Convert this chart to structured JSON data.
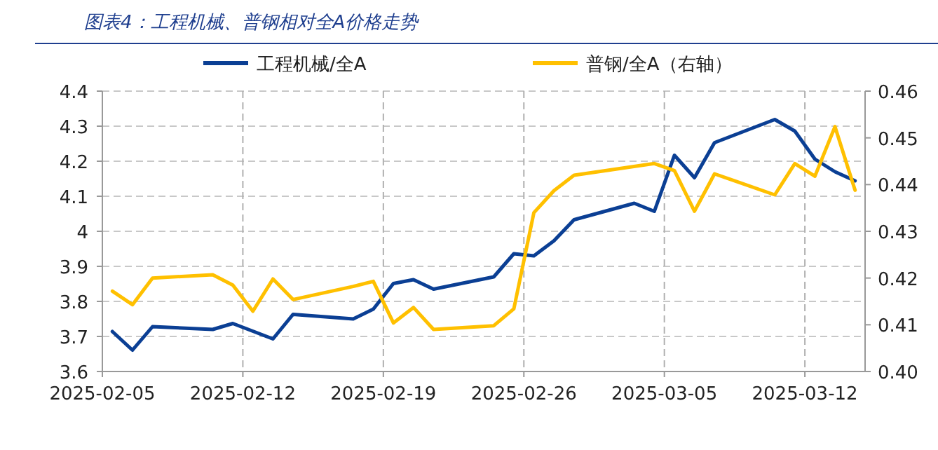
{
  "chart_data": {
    "type": "line",
    "title": "图表4：工程机械、普钢相对全A价格走势",
    "series": [
      {
        "name": "工程机械/全A",
        "color": "#0b3f94",
        "x": [
          "2025-02-05T12:00",
          "2025-02-06T12:00",
          "2025-02-07T12:00",
          "2025-02-10T12:00",
          "2025-02-11T12:00",
          "2025-02-13T12:00",
          "2025-02-14T12:00",
          "2025-02-17T12:00",
          "2025-02-18T12:00",
          "2025-02-19T12:00",
          "2025-02-20T12:00",
          "2025-02-21T12:00",
          "2025-02-24T12:00",
          "2025-02-25T12:00",
          "2025-02-26T12:00",
          "2025-02-27T12:00",
          "2025-02-28T12:00",
          "2025-03-03T12:00",
          "2025-03-04T12:00",
          "2025-03-05T12:00",
          "2025-03-06T12:00",
          "2025-03-07T12:00",
          "2025-03-10T12:00",
          "2025-03-11T12:00",
          "2025-03-12T12:00",
          "2025-03-13T12:00",
          "2025-03-14T12:00"
        ],
        "values": [
          3.714,
          3.661,
          3.728,
          3.72,
          3.737,
          3.693,
          3.763,
          3.75,
          3.778,
          3.851,
          3.862,
          3.835,
          3.87,
          3.936,
          3.93,
          3.973,
          4.033,
          4.08,
          4.057,
          4.217,
          4.153,
          4.253,
          4.319,
          4.286,
          4.206,
          4.17,
          4.144
        ]
      },
      {
        "name": "普钢/全A（右轴）",
        "color": "#ffc000",
        "axis": "y2",
        "x": [
          "2025-02-05T12:00",
          "2025-02-06T12:00",
          "2025-02-07T12:00",
          "2025-02-10T12:00",
          "2025-02-11T12:00",
          "2025-02-12T12:00",
          "2025-02-13T12:00",
          "2025-02-14T12:00",
          "2025-02-17T12:00",
          "2025-02-18T12:00",
          "2025-02-19T12:00",
          "2025-02-20T12:00",
          "2025-02-21T12:00",
          "2025-02-24T12:00",
          "2025-02-25T12:00",
          "2025-02-26T12:00",
          "2025-02-27T12:00",
          "2025-02-28T12:00",
          "2025-03-04T12:00",
          "2025-03-05T12:00",
          "2025-03-06T12:00",
          "2025-03-07T12:00",
          "2025-03-10T12:00",
          "2025-03-11T12:00",
          "2025-03-12T12:00",
          "2025-03-13T12:00",
          "2025-03-14T12:00"
        ],
        "values": [
          0.4172,
          0.4143,
          0.42,
          0.4207,
          0.4185,
          0.4129,
          0.4198,
          0.4154,
          0.4182,
          0.4193,
          0.4104,
          0.4137,
          0.409,
          0.4098,
          0.4134,
          0.434,
          0.4387,
          0.442,
          0.4445,
          0.443,
          0.4343,
          0.4423,
          0.4378,
          0.4445,
          0.4418,
          0.4524,
          0.4388
        ]
      }
    ],
    "xlim": [
      "2025-02-05",
      "2025-03-15"
    ],
    "xticks": [
      {
        "value": "2025-02-05",
        "label": "2025-02-05"
      },
      {
        "value": "2025-02-12",
        "label": "2025-02-12"
      },
      {
        "value": "2025-02-19",
        "label": "2025-02-19"
      },
      {
        "value": "2025-02-26",
        "label": "2025-02-26"
      },
      {
        "value": "2025-03-05",
        "label": "2025-03-05"
      },
      {
        "value": "2025-03-12",
        "label": "2025-03-12"
      }
    ],
    "ylim": [
      3.6,
      4.4
    ],
    "yticks": [
      {
        "value": 3.6,
        "label": "3.6"
      },
      {
        "value": 3.7,
        "label": "3.7"
      },
      {
        "value": 3.8,
        "label": "3.8"
      },
      {
        "value": 3.9,
        "label": "3.9"
      },
      4,
      {
        "value": 4.1,
        "label": "4.1"
      },
      {
        "value": 4.2,
        "label": "4.2"
      },
      {
        "value": 4.3,
        "label": "4.3"
      },
      {
        "value": 4.4,
        "label": "4.4"
      }
    ],
    "y2lim": [
      0.4,
      0.46
    ],
    "y2ticks": [
      {
        "value": 0.4,
        "label": "0.40"
      },
      {
        "value": 0.41,
        "label": "0.41"
      },
      {
        "value": 0.42,
        "label": "0.42"
      },
      {
        "value": 0.43,
        "label": "0.43"
      },
      {
        "value": 0.44,
        "label": "0.44"
      },
      {
        "value": 0.45,
        "label": "0.45"
      },
      {
        "value": 0.46,
        "label": "0.46"
      }
    ],
    "grid": true,
    "legend": "top",
    "marker": "none",
    "line_style": "solid"
  }
}
